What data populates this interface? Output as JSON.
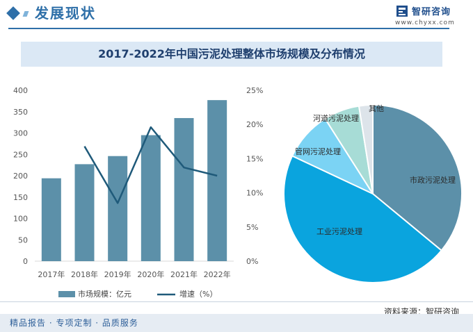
{
  "header": {
    "section_title": "发展现状",
    "logo_name": "智研咨询",
    "logo_url": "www.chyxx.com"
  },
  "source": "资料来源：智研咨询",
  "footer_text": "精品报告 · 专项定制 · 品质服务",
  "colors": {
    "bar": "#5c90a9",
    "line": "#1f5a7a",
    "header_blue": "#2e6fa8",
    "title_band": "#dbe8f5",
    "pie_municipal": "#5c90a9",
    "pie_industrial": "#0aa4de",
    "pie_pipe": "#7bd3f4",
    "pie_river": "#a7dcd6",
    "pie_other": "#dde4ea"
  },
  "chart_data": [
    {
      "type": "bar",
      "title": "2017-2022年中国污泥处理整体市场规模及分布情况",
      "categories": [
        "2017年",
        "2018年",
        "2019年",
        "2020年",
        "2021年",
        "2022年"
      ],
      "series": [
        {
          "name": "市场规模：亿元",
          "type": "bar",
          "axis": "left",
          "values": [
            194,
            227,
            246,
            295,
            335,
            377
          ]
        },
        {
          "name": "增速（%）",
          "type": "line",
          "axis": "right",
          "values": [
            null,
            16.8,
            8.5,
            19.6,
            13.7,
            12.5
          ]
        }
      ],
      "ylim": [
        0,
        400
      ],
      "yticks": [
        0,
        50,
        100,
        150,
        200,
        250,
        300,
        350,
        400
      ],
      "y2lim": [
        0,
        25
      ],
      "y2ticks": [
        "0%",
        "5%",
        "10%",
        "15%",
        "20%",
        "25%"
      ],
      "legend_position": "bottom",
      "grid": false
    },
    {
      "type": "pie",
      "labels": [
        "市政污泥处理",
        "工业污泥处理",
        "管网污泥处理",
        "河道污泥处理",
        "其他"
      ],
      "values": [
        36,
        46,
        9,
        6.5,
        2.5
      ],
      "start_angle_deg": 0,
      "direction": "clockwise"
    }
  ]
}
